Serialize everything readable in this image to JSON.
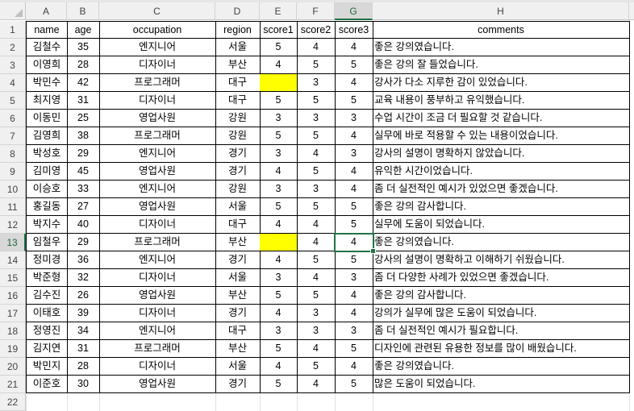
{
  "sheet": {
    "column_letters": [
      "A",
      "B",
      "C",
      "D",
      "E",
      "F",
      "G",
      "H"
    ],
    "selected_cell": "G13",
    "highlight_color": "#ffff00",
    "selection_color": "#217346",
    "headers": [
      "name",
      "age",
      "occupation",
      "region",
      "score1",
      "score2",
      "score3",
      "comments"
    ],
    "rows": [
      [
        "김철수",
        "35",
        "엔지니어",
        "서울",
        "5",
        "4",
        "4",
        "좋은 강의였습니다."
      ],
      [
        "이영희",
        "28",
        "디자이너",
        "부산",
        "4",
        "5",
        "5",
        "좋은 강의 잘 들었습니다."
      ],
      [
        "박민수",
        "42",
        "프로그래머",
        "대구",
        "",
        "3",
        "4",
        "강사가 다소 지루한 감이 있었습니다."
      ],
      [
        "최지영",
        "31",
        "디자이너",
        "대구",
        "5",
        "5",
        "5",
        "교육 내용이 풍부하고 유익했습니다."
      ],
      [
        "이동민",
        "25",
        "영업사원",
        "강원",
        "3",
        "3",
        "3",
        "수업 시간이 조금 더 필요할 것 같습니다."
      ],
      [
        "김영희",
        "38",
        "프로그래머",
        "강원",
        "5",
        "5",
        "4",
        "실무에 바로 적용할 수 있는 내용이었습니다."
      ],
      [
        "박성호",
        "29",
        "엔지니어",
        "경기",
        "3",
        "4",
        "3",
        "강사의 설명이 명확하지 않았습니다."
      ],
      [
        "김미영",
        "45",
        "영업사원",
        "경기",
        "4",
        "5",
        "4",
        "유익한 시간이었습니다."
      ],
      [
        "이승호",
        "33",
        "엔지니어",
        "강원",
        "3",
        "3",
        "4",
        "좀 더 실전적인 예시가 있었으면 좋겠습니다."
      ],
      [
        "홍길동",
        "27",
        "영업사원",
        "서울",
        "5",
        "5",
        "5",
        "좋은 강의 감사합니다."
      ],
      [
        "박지수",
        "40",
        "디자이너",
        "대구",
        "4",
        "4",
        "5",
        "실무에 도움이 되었습니다."
      ],
      [
        "임철우",
        "29",
        "프로그래머",
        "부산",
        "",
        "4",
        "4",
        "좋은 강의였습니다."
      ],
      [
        "정미경",
        "36",
        "엔지니어",
        "경기",
        "4",
        "5",
        "5",
        "강사의 설명이 명확하고 이해하기 쉬웠습니다."
      ],
      [
        "박준형",
        "32",
        "디자이너",
        "서울",
        "3",
        "4",
        "3",
        "좀 더 다양한 사례가 있었으면 좋겠습니다."
      ],
      [
        "김수진",
        "26",
        "영업사원",
        "부산",
        "5",
        "5",
        "4",
        "좋은 강의 감사합니다."
      ],
      [
        "이태호",
        "39",
        "디자이너",
        "경기",
        "4",
        "3",
        "4",
        "강의가 실무에 많은 도움이 되었습니다."
      ],
      [
        "정영진",
        "34",
        "엔지니어",
        "대구",
        "3",
        "3",
        "3",
        "좀 더 실전적인 예시가 필요합니다."
      ],
      [
        "김지연",
        "31",
        "프로그래머",
        "부산",
        "5",
        "4",
        "5",
        "디자인에 관련된 유용한 정보를 많이 배웠습니다."
      ],
      [
        "박민지",
        "28",
        "디자이너",
        "서울",
        "4",
        "5",
        "4",
        "좋은 강의였습니다."
      ],
      [
        "이준호",
        "30",
        "영업사원",
        "경기",
        "5",
        "4",
        "5",
        "많은 도움이 되었습니다."
      ]
    ],
    "highlighted_cells": [
      "E4",
      "E13"
    ]
  }
}
